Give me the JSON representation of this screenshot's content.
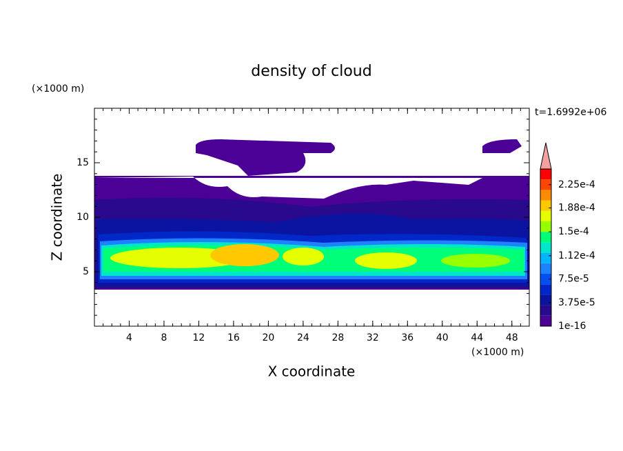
{
  "chart_data": {
    "type": "contour",
    "title": "density of cloud",
    "x_label": "X coordinate",
    "y_label": "Z coordinate",
    "x_unit_label": "(×1000 m)",
    "y_unit_label": "(×1000 m)",
    "annotation": "t=1.6992e+06",
    "xlim": [
      0,
      50
    ],
    "ylim": [
      0,
      20
    ],
    "xticks": [
      4,
      8,
      12,
      16,
      20,
      24,
      28,
      32,
      36,
      40,
      44,
      48
    ],
    "yticks": [
      5,
      10,
      15
    ],
    "colorbar": {
      "clim": [
        1e-16,
        0.00025
      ],
      "colors": [
        "#4b0096",
        "#2a0a8c",
        "#0a14a0",
        "#0028c8",
        "#0050f0",
        "#1e82ff",
        "#00b4ff",
        "#00e6c8",
        "#00ff78",
        "#96ff00",
        "#e6ff00",
        "#ffc800",
        "#ff8c00",
        "#ff4600",
        "#ff0000"
      ],
      "extend_color": "#f4a0a0",
      "ticks": [
        {
          "value": 1e-16,
          "label": "1e-16"
        },
        {
          "value": 3.75e-05,
          "label": "3.75e-5"
        },
        {
          "value": 7.5e-05,
          "label": "7.5e-5"
        },
        {
          "value": 0.000112,
          "label": "1.12e-4"
        },
        {
          "value": 0.00015,
          "label": "1.5e-4"
        },
        {
          "value": 0.000188,
          "label": "1.88e-4"
        },
        {
          "value": 0.000225,
          "label": "2.25e-4"
        }
      ]
    }
  }
}
